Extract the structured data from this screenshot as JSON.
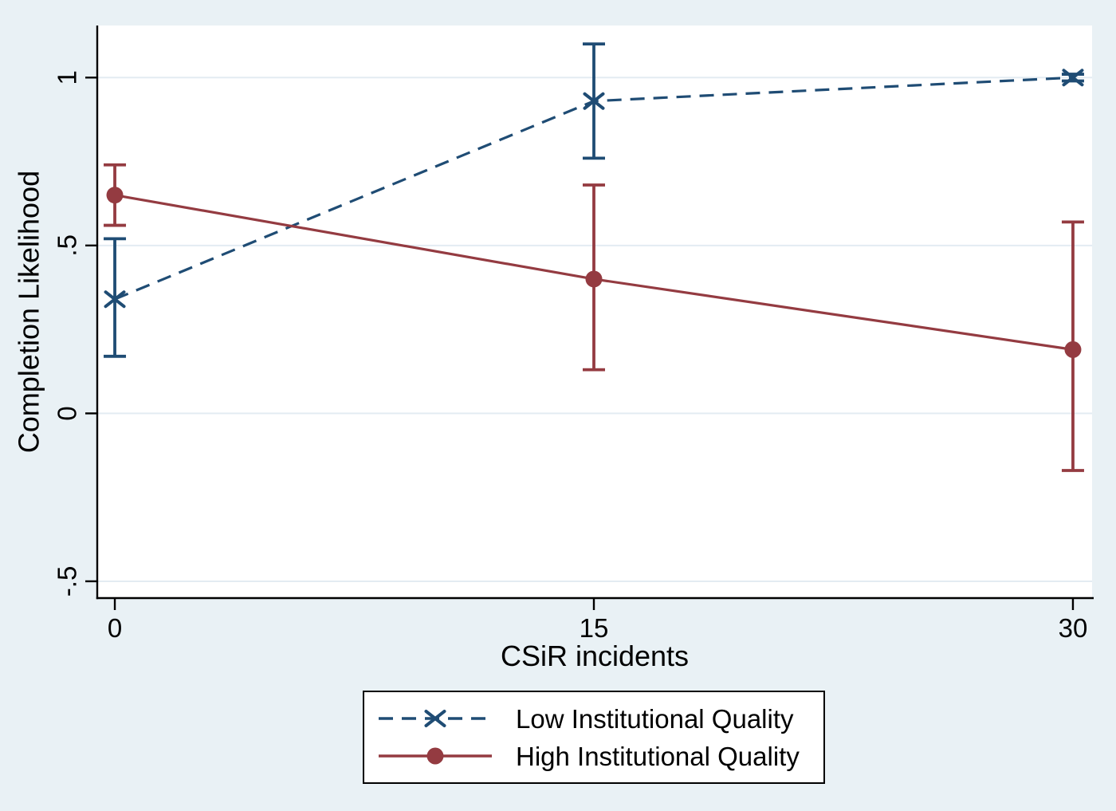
{
  "colors": {
    "background": "#E9F1F5",
    "plot_background": "#FFFFFF",
    "grid": "#E3ECF2",
    "axis": "#000000",
    "text": "#000000"
  },
  "chart_data": {
    "type": "line",
    "title": "",
    "xlabel": "CSiR incidents",
    "ylabel": "Completion Likelihood",
    "grid": "horizontal",
    "legend_position": "below",
    "error_bars": true,
    "x": [
      0,
      15,
      30
    ],
    "xlim": [
      -0.55,
      30.6
    ],
    "ylim": [
      -0.55,
      1.155
    ],
    "xticks": [
      {
        "value": 0,
        "label": "0"
      },
      {
        "value": 15,
        "label": "15"
      },
      {
        "value": 30,
        "label": "30"
      }
    ],
    "yticks": [
      {
        "value": -0.5,
        "label": "-.5"
      },
      {
        "value": 0,
        "label": "0"
      },
      {
        "value": 0.5,
        "label": ".5"
      },
      {
        "value": 1,
        "label": "1"
      }
    ],
    "series": [
      {
        "name": "Low Institutional Quality",
        "color": "#1F4C74",
        "line_style": "dashed",
        "marker": "x",
        "values": [
          0.34,
          0.93,
          1.0
        ],
        "ci_low": [
          0.17,
          0.76,
          0.99
        ],
        "ci_high": [
          0.52,
          1.1,
          1.01
        ]
      },
      {
        "name": "High Institutional Quality",
        "color": "#943B41",
        "line_style": "solid",
        "marker": "circle",
        "values": [
          0.65,
          0.4,
          0.19
        ],
        "ci_low": [
          0.56,
          0.13,
          -0.17
        ],
        "ci_high": [
          0.74,
          0.68,
          0.57
        ]
      }
    ]
  }
}
